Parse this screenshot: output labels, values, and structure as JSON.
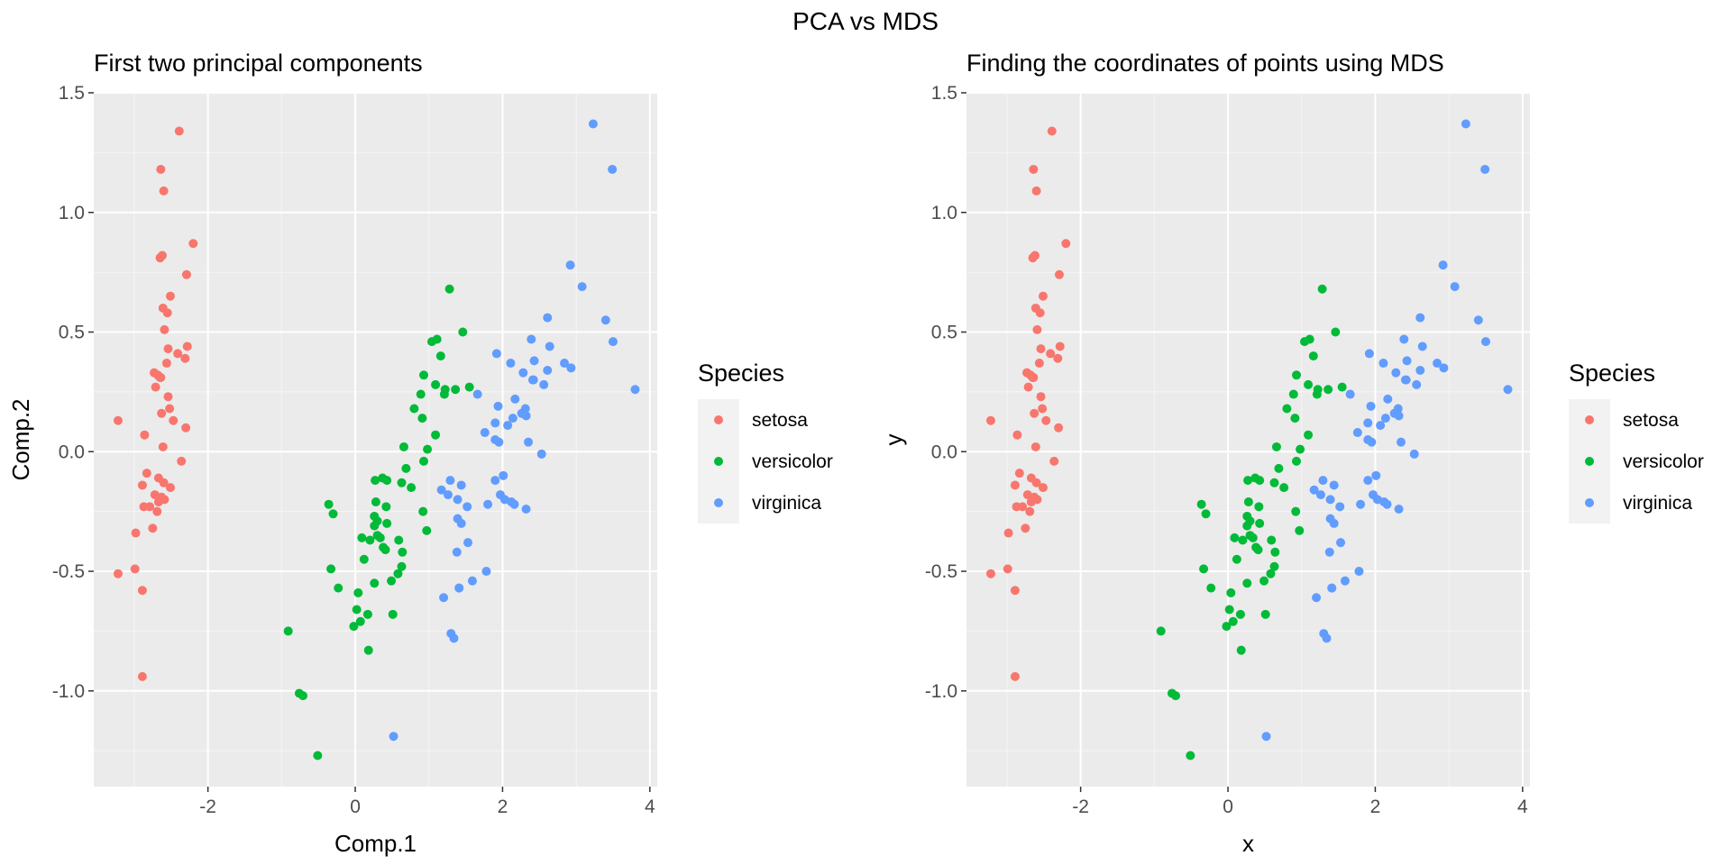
{
  "title": "PCA vs MDS",
  "legend": {
    "title": "Species",
    "entries": [
      {
        "name": "setosa",
        "color": "#F8766D"
      },
      {
        "name": "versicolor",
        "color": "#00BA38"
      },
      {
        "name": "virginica",
        "color": "#619CFF"
      }
    ]
  },
  "chart_data": [
    {
      "type": "scatter",
      "title": "First two principal components",
      "xlabel": "Comp.1",
      "ylabel": "Comp.2",
      "xlim": [
        -3.55,
        4.1
      ],
      "ylim": [
        -1.4,
        1.5
      ],
      "xticks": [
        -2,
        0,
        2,
        4
      ],
      "yticks": [
        -1.0,
        -0.5,
        0.0,
        0.5,
        1.0,
        1.5
      ],
      "xtick_labels": [
        "-2",
        "0",
        "2",
        "4"
      ],
      "ytick_labels": [
        "-1.0",
        "-0.5",
        "0.0",
        "0.5",
        "1.0",
        "1.5"
      ],
      "grid": true,
      "legend_position": "right",
      "series": [
        {
          "name": "setosa",
          "x": [
            -2.68,
            -2.72,
            -2.89,
            -2.75,
            -2.73,
            -2.29,
            -2.83,
            -2.63,
            -2.89,
            -2.67,
            -2.51,
            -2.61,
            -2.79,
            -3.22,
            -2.64,
            -2.39,
            -2.62,
            -2.65,
            -2.2,
            -2.59,
            -2.31,
            -2.54,
            -3.22,
            -2.3,
            -2.36,
            -2.51,
            -2.47,
            -2.56,
            -2.64,
            -2.63,
            -2.59,
            -2.41,
            -2.65,
            -2.6,
            -2.99,
            -2.98,
            -2.89,
            -2.52,
            -2.71,
            -2.28,
            -2.86,
            -2.87,
            -2.69,
            -2.55,
            -2.54,
            -2.61,
            -2.6,
            -2.67
          ],
          "y": [
            0.32,
            -0.18,
            -0.14,
            -0.32,
            0.33,
            0.74,
            -0.09,
            0.16,
            -0.58,
            -0.11,
            0.65,
            0.02,
            -0.23,
            -0.51,
            1.18,
            1.34,
            0.82,
            0.31,
            0.87,
            0.51,
            0.39,
            0.43,
            0.13,
            0.1,
            -0.04,
            -0.15,
            0.13,
            0.37,
            0.31,
            -0.19,
            -0.2,
            0.41,
            0.81,
            1.09,
            -0.49,
            -0.34,
            -0.94,
            0.18,
            0.27,
            0.44,
            0.07,
            -0.23,
            -0.25,
            0.58,
            0.23,
            0.6,
            -0.13,
            -0.21
          ]
        },
        {
          "name": "versicolor",
          "x": [
            1.28,
            0.93,
            1.46,
            0.18,
            1.09,
            0.64,
            1.09,
            -0.76,
            0.91,
            -0.02,
            -0.51,
            0.27,
            0.26,
            0.93,
            -0.3,
            0.89,
            0.63,
            0.2,
            0.92,
            0.02,
            0.98,
            0.17,
            1.16,
            0.97,
            0.59,
            0.8,
            1.22,
            1.36,
            0.76,
            -0.36,
            -0.23,
            -0.33,
            0.09,
            1.11,
            0.63,
            1.04,
            1.21,
            0.43,
            0.26,
            0.26,
            0.58,
            0.49,
            0.51,
            0.34,
            0.28,
            0.42,
            0.66,
            1.55,
            0.43,
            0.07,
            -0.71,
            -0.91,
            0.04,
            0.69,
            0.3,
            0.3,
            0.38,
            0.12,
            0.37,
            0.41
          ],
          "y": [
            0.68,
            0.32,
            0.5,
            -0.83,
            0.07,
            -0.42,
            0.28,
            -1.01,
            0.14,
            -0.73,
            -1.27,
            -0.12,
            -0.55,
            -0.04,
            -0.26,
            0.24,
            -0.48,
            -0.37,
            -0.25,
            -0.66,
            0.01,
            -0.68,
            0.4,
            -0.33,
            -0.37,
            0.18,
            0.26,
            0.26,
            -0.15,
            -0.22,
            -0.57,
            -0.49,
            -0.36,
            0.47,
            -0.13,
            0.46,
            0.24,
            -0.3,
            -0.27,
            -0.31,
            -0.51,
            -0.54,
            -0.68,
            -0.36,
            -0.21,
            -0.23,
            0.02,
            0.27,
            -0.12,
            -0.71,
            -1.02,
            -0.75,
            -0.59,
            -0.07,
            -0.35,
            -0.29,
            -0.4,
            -0.45,
            -0.11,
            -0.41
          ]
        },
        {
          "name": "virginica",
          "x": [
            2.53,
            1.41,
            2.61,
            1.97,
            2.35,
            3.4,
            0.52,
            2.93,
            2.32,
            2.92,
            1.66,
            1.8,
            2.17,
            1.34,
            1.59,
            1.9,
            1.95,
            3.49,
            3.8,
            1.3,
            2.43,
            1.2,
            3.5,
            1.39,
            2.28,
            2.61,
            1.26,
            1.29,
            2.12,
            2.39,
            2.84,
            3.23,
            2.16,
            1.44,
            1.78,
            3.08,
            2.14,
            1.9,
            1.17,
            2.11,
            2.31,
            1.92,
            1.41,
            2.56,
            2.42,
            1.94,
            1.53,
            1.76,
            1.9,
            1.39,
            2.01,
            2.26,
            1.52,
            1.44,
            2.03,
            1.38,
            2.41,
            2.64,
            2.32,
            2.07
          ],
          "y": [
            -0.01,
            -0.57,
            0.34,
            -0.18,
            0.04,
            0.55,
            -1.19,
            0.35,
            -0.24,
            0.78,
            0.24,
            -0.22,
            0.22,
            -0.78,
            -0.54,
            0.12,
            0.04,
            1.18,
            0.26,
            -0.76,
            0.38,
            -0.61,
            0.46,
            -0.2,
            0.33,
            0.56,
            -0.18,
            -0.12,
            -0.21,
            0.47,
            0.37,
            1.37,
            -0.22,
            -0.14,
            -0.5,
            0.69,
            0.14,
            0.05,
            -0.16,
            0.37,
            0.18,
            0.41,
            -0.57,
            0.28,
            0.3,
            0.19,
            -0.38,
            0.08,
            -0.12,
            -0.28,
            -0.1,
            0.16,
            -0.23,
            -0.3,
            -0.2,
            -0.42,
            0.3,
            0.44,
            0.15,
            0.11
          ]
        }
      ]
    },
    {
      "type": "scatter",
      "title": "Finding the coordinates of points using MDS",
      "xlabel": "x",
      "ylabel": "y",
      "xlim": [
        -3.55,
        4.1
      ],
      "ylim": [
        -1.4,
        1.5
      ],
      "xticks": [
        -2,
        0,
        2,
        4
      ],
      "yticks": [
        -1.0,
        -0.5,
        0.0,
        0.5,
        1.0,
        1.5
      ],
      "xtick_labels": [
        "-2",
        "0",
        "2",
        "4"
      ],
      "ytick_labels": [
        "-1.0",
        "-0.5",
        "0.0",
        "0.5",
        "1.0",
        "1.5"
      ],
      "grid": true,
      "legend_position": "right",
      "series": [
        {
          "name": "setosa",
          "x": [
            -2.68,
            -2.72,
            -2.89,
            -2.75,
            -2.73,
            -2.29,
            -2.83,
            -2.63,
            -2.89,
            -2.67,
            -2.51,
            -2.61,
            -2.79,
            -3.22,
            -2.64,
            -2.39,
            -2.62,
            -2.65,
            -2.2,
            -2.59,
            -2.31,
            -2.54,
            -3.22,
            -2.3,
            -2.36,
            -2.51,
            -2.47,
            -2.56,
            -2.64,
            -2.63,
            -2.59,
            -2.41,
            -2.65,
            -2.6,
            -2.99,
            -2.98,
            -2.89,
            -2.52,
            -2.71,
            -2.28,
            -2.86,
            -2.87,
            -2.69,
            -2.55,
            -2.54,
            -2.61,
            -2.6,
            -2.67
          ],
          "y": [
            0.32,
            -0.18,
            -0.14,
            -0.32,
            0.33,
            0.74,
            -0.09,
            0.16,
            -0.58,
            -0.11,
            0.65,
            0.02,
            -0.23,
            -0.51,
            1.18,
            1.34,
            0.82,
            0.31,
            0.87,
            0.51,
            0.39,
            0.43,
            0.13,
            0.1,
            -0.04,
            -0.15,
            0.13,
            0.37,
            0.31,
            -0.19,
            -0.2,
            0.41,
            0.81,
            1.09,
            -0.49,
            -0.34,
            -0.94,
            0.18,
            0.27,
            0.44,
            0.07,
            -0.23,
            -0.25,
            0.58,
            0.23,
            0.6,
            -0.13,
            -0.21
          ]
        },
        {
          "name": "versicolor",
          "x": [
            1.28,
            0.93,
            1.46,
            0.18,
            1.09,
            0.64,
            1.09,
            -0.76,
            0.91,
            -0.02,
            -0.51,
            0.27,
            0.26,
            0.93,
            -0.3,
            0.89,
            0.63,
            0.2,
            0.92,
            0.02,
            0.98,
            0.17,
            1.16,
            0.97,
            0.59,
            0.8,
            1.22,
            1.36,
            0.76,
            -0.36,
            -0.23,
            -0.33,
            0.09,
            1.11,
            0.63,
            1.04,
            1.21,
            0.43,
            0.26,
            0.26,
            0.58,
            0.49,
            0.51,
            0.34,
            0.28,
            0.42,
            0.66,
            1.55,
            0.43,
            0.07,
            -0.71,
            -0.91,
            0.04,
            0.69,
            0.3,
            0.3,
            0.38,
            0.12,
            0.37,
            0.41
          ],
          "y": [
            0.68,
            0.32,
            0.5,
            -0.83,
            0.07,
            -0.42,
            0.28,
            -1.01,
            0.14,
            -0.73,
            -1.27,
            -0.12,
            -0.55,
            -0.04,
            -0.26,
            0.24,
            -0.48,
            -0.37,
            -0.25,
            -0.66,
            0.01,
            -0.68,
            0.4,
            -0.33,
            -0.37,
            0.18,
            0.26,
            0.26,
            -0.15,
            -0.22,
            -0.57,
            -0.49,
            -0.36,
            0.47,
            -0.13,
            0.46,
            0.24,
            -0.3,
            -0.27,
            -0.31,
            -0.51,
            -0.54,
            -0.68,
            -0.36,
            -0.21,
            -0.23,
            0.02,
            0.27,
            -0.12,
            -0.71,
            -1.02,
            -0.75,
            -0.59,
            -0.07,
            -0.35,
            -0.29,
            -0.4,
            -0.45,
            -0.11,
            -0.41
          ]
        },
        {
          "name": "virginica",
          "x": [
            2.53,
            1.41,
            2.61,
            1.97,
            2.35,
            3.4,
            0.52,
            2.93,
            2.32,
            2.92,
            1.66,
            1.8,
            2.17,
            1.34,
            1.59,
            1.9,
            1.95,
            3.49,
            3.8,
            1.3,
            2.43,
            1.2,
            3.5,
            1.39,
            2.28,
            2.61,
            1.26,
            1.29,
            2.12,
            2.39,
            2.84,
            3.23,
            2.16,
            1.44,
            1.78,
            3.08,
            2.14,
            1.9,
            1.17,
            2.11,
            2.31,
            1.92,
            1.41,
            2.56,
            2.42,
            1.94,
            1.53,
            1.76,
            1.9,
            1.39,
            2.01,
            2.26,
            1.52,
            1.44,
            2.03,
            1.38,
            2.41,
            2.64,
            2.32,
            2.07
          ],
          "y": [
            -0.01,
            -0.57,
            0.34,
            -0.18,
            0.04,
            0.55,
            -1.19,
            0.35,
            -0.24,
            0.78,
            0.24,
            -0.22,
            0.22,
            -0.78,
            -0.54,
            0.12,
            0.04,
            1.18,
            0.26,
            -0.76,
            0.38,
            -0.61,
            0.46,
            -0.2,
            0.33,
            0.56,
            -0.18,
            -0.12,
            -0.21,
            0.47,
            0.37,
            1.37,
            -0.22,
            -0.14,
            -0.5,
            0.69,
            0.14,
            0.05,
            -0.16,
            0.37,
            0.18,
            0.41,
            -0.57,
            0.28,
            0.3,
            0.19,
            -0.38,
            0.08,
            -0.12,
            -0.28,
            -0.1,
            0.16,
            -0.23,
            -0.3,
            -0.2,
            -0.42,
            0.3,
            0.44,
            0.15,
            0.11
          ]
        }
      ]
    }
  ]
}
